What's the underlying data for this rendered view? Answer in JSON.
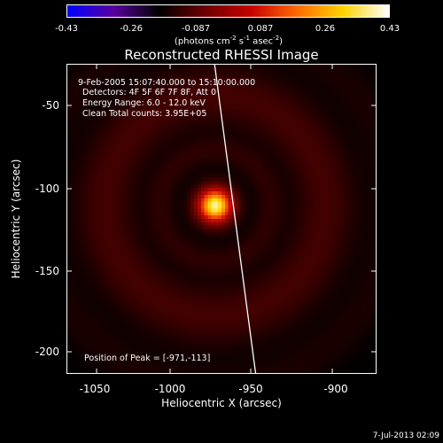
{
  "title": "Reconstructed RHESSI Image",
  "colorbar": {
    "ticks": [
      "-0.43",
      "-0.26",
      "-0.087",
      "0.087",
      "0.26",
      "0.43"
    ],
    "units_prefix": "(photons cm",
    "units_exp1": "-2",
    "units_mid1": " s",
    "units_exp2": "-1",
    "units_mid2": " asec",
    "units_exp3": "-2",
    "units_suffix": ")"
  },
  "annotations": {
    "time": "9-Feb-2005 15:07:40.000 to 15:10:00.000",
    "detectors": "Detectors: 4F 5F 6F 7F 8F, Att 0",
    "energy": "Energy Range: 6.0 - 12.0 keV",
    "method_counts": "Clean     Total counts: 3.95E+05",
    "peak": "Position of Peak = [-971,-113]"
  },
  "axes": {
    "xlabel": "Heliocentric X (arcsec)",
    "ylabel": "Heliocentric Y (arcsec)",
    "xticks": [
      "-1050",
      "-1000",
      "-950",
      "-900"
    ],
    "yticks": [
      "-50",
      "-100",
      "-150",
      "-200"
    ]
  },
  "footer": "7-Jul-2013 02:09",
  "colors": {
    "background": "#000000",
    "text": "#ffffff",
    "colormap": [
      "#0000ff",
      "#5a00a0",
      "#000000",
      "#6e0000",
      "#c80000",
      "#ff6a00",
      "#ffd400",
      "#ffffff"
    ]
  }
}
